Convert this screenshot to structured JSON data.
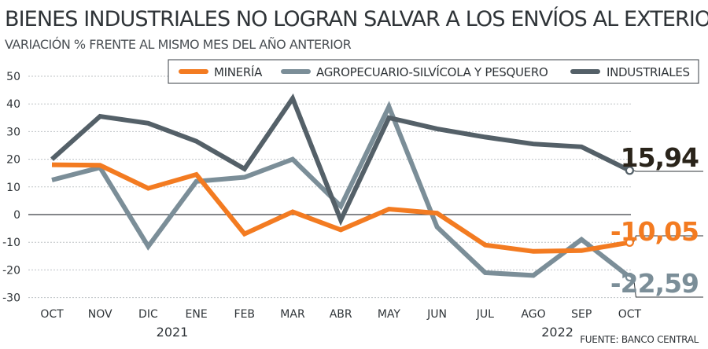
{
  "title": "BIENES INDUSTRIALES NO LOGRAN SALVAR A LOS ENVÍOS AL EXTERIOR DE LA CAÍDA",
  "subtitle": "VARIACIÓN % FRENTE AL MISMO MES DEL AÑO ANTERIOR",
  "source": "FUENTE: BANCO CENTRAL",
  "chart_data": {
    "type": "line",
    "title": "BIENES INDUSTRIALES NO LOGRAN SALVAR A LOS ENVÍOS AL EXTERIOR DE LA CAÍDA",
    "subtitle": "VARIACIÓN % FRENTE AL MISMO MES DEL AÑO ANTERIOR",
    "categories": [
      "OCT",
      "NOV",
      "DIC",
      "ENE",
      "FEB",
      "MAR",
      "ABR",
      "MAY",
      "JUN",
      "JUL",
      "AGO",
      "SEP",
      "OCT"
    ],
    "year_labels": [
      {
        "label": "2021",
        "under_category": 2.5
      },
      {
        "label": "2022",
        "under_category": 10.5
      }
    ],
    "ylim": [
      -30,
      50
    ],
    "yticks": [
      -30,
      -20,
      -10,
      0,
      10,
      20,
      30,
      40,
      50
    ],
    "grid": true,
    "legend_position": "top-right",
    "series": [
      {
        "name": "MINERÍA",
        "color": "#f37b21",
        "values": [
          18,
          17.8,
          9.5,
          14.5,
          -7,
          1,
          -5.5,
          2,
          0.5,
          -11,
          -13.3,
          -13,
          -10.05
        ],
        "end_label": "-10,05"
      },
      {
        "name": "AGROPECUARIO-SILVÍCOLA Y PESQUERO",
        "color": "#7b8e98",
        "values": [
          12.5,
          17,
          -11.5,
          12,
          13.5,
          20,
          3,
          39,
          -4.5,
          -21,
          -22,
          -9,
          -22.59
        ],
        "end_label": "-22,59"
      },
      {
        "name": "INDUSTRIALES",
        "color": "#546068",
        "values": [
          20,
          35.5,
          33,
          26.5,
          16.5,
          42,
          -2,
          35,
          31,
          28,
          25.5,
          24.5,
          15.94
        ],
        "end_label": "15,94"
      }
    ]
  }
}
